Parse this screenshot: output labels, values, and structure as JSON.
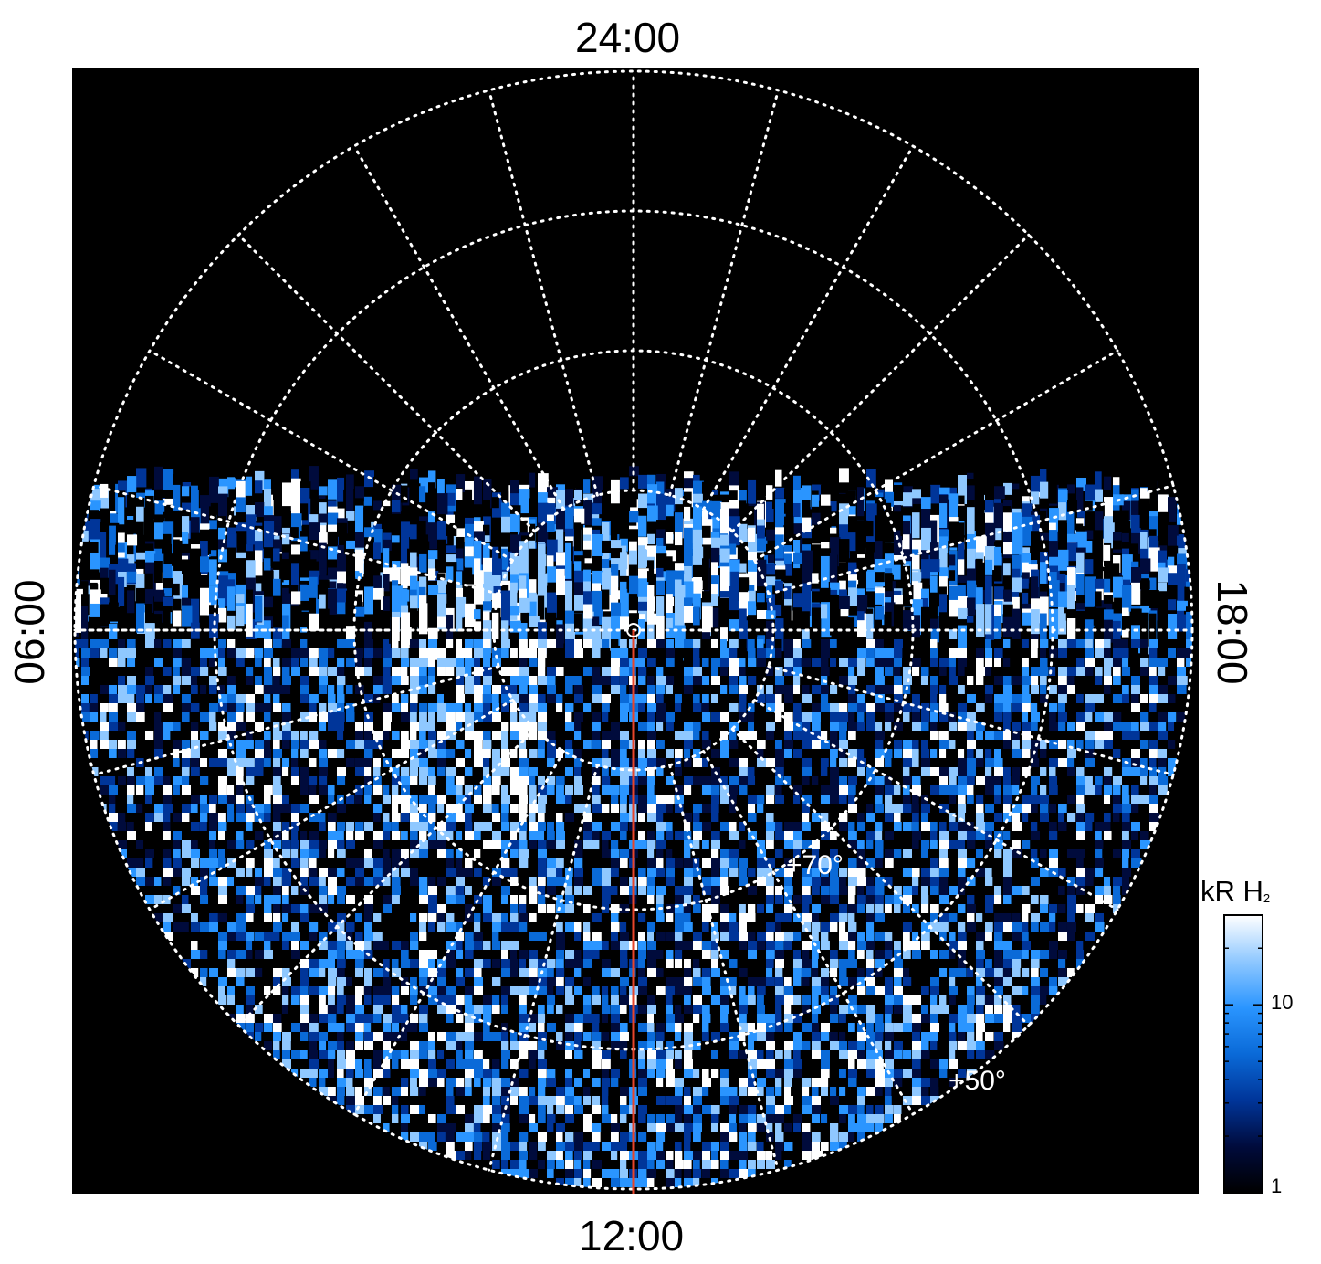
{
  "labels": {
    "top": "24:00",
    "bottom": "12:00",
    "left": "06:00",
    "right": "18:00"
  },
  "latitude_labels": [
    {
      "text": "+70°",
      "lat": 70
    },
    {
      "text": "+50°",
      "lat": 50
    }
  ],
  "colorbar": {
    "title_main": "kR H",
    "title_sub": "2",
    "scale": "log",
    "range": [
      1,
      30
    ],
    "tick_labels": [
      "10",
      "1"
    ],
    "tick_values": [
      10,
      1
    ],
    "colors": [
      "#000000",
      "#000b3c",
      "#003599",
      "#0a6ad8",
      "#2a95ff",
      "#8fc8ff",
      "#ffffff"
    ]
  },
  "plot": {
    "background": "#000000",
    "grid_color": "#ffffff",
    "meridian_color": "#e8452a",
    "circle_colatitudes_deg": [
      10,
      20,
      30,
      40
    ],
    "meridian_hours": 24
  }
}
